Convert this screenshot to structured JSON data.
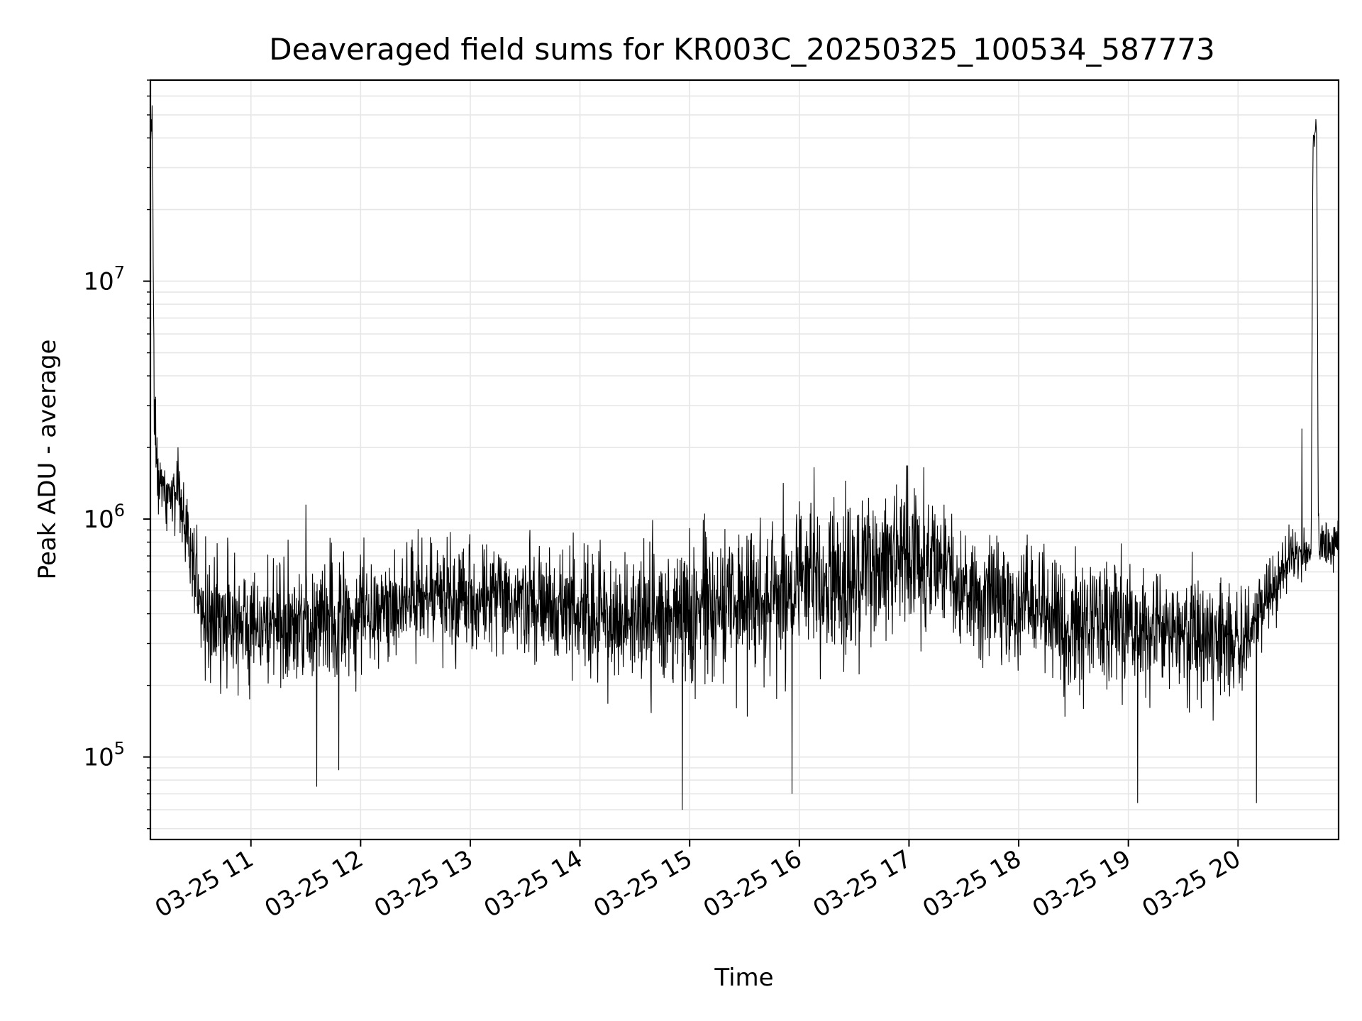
{
  "chart_data": {
    "type": "line",
    "title": "Deaveraged field sums for KR003C_20250325_100534_587773",
    "xlabel": "Time",
    "ylabel": "Peak ADU - average",
    "y_scale": "log",
    "grid": true,
    "line_color": "#000000",
    "grid_color": "#e6e6e6",
    "xlim": [
      "2025-03-25 10:05",
      "2025-03-25 20:55"
    ],
    "ylim": [
      45000,
      70000000
    ],
    "x_ticks": [
      {
        "value": "2025-03-25 11:00",
        "label": "03-25 11"
      },
      {
        "value": "2025-03-25 12:00",
        "label": "03-25 12"
      },
      {
        "value": "2025-03-25 13:00",
        "label": "03-25 13"
      },
      {
        "value": "2025-03-25 14:00",
        "label": "03-25 14"
      },
      {
        "value": "2025-03-25 15:00",
        "label": "03-25 15"
      },
      {
        "value": "2025-03-25 16:00",
        "label": "03-25 16"
      },
      {
        "value": "2025-03-25 17:00",
        "label": "03-25 17"
      },
      {
        "value": "2025-03-25 18:00",
        "label": "03-25 18"
      },
      {
        "value": "2025-03-25 19:00",
        "label": "03-25 19"
      },
      {
        "value": "2025-03-25 20:00",
        "label": "03-25 20"
      }
    ],
    "y_ticks": [
      {
        "value": 100000,
        "base": "10",
        "exp": "5"
      },
      {
        "value": 1000000,
        "base": "10",
        "exp": "6"
      },
      {
        "value": 10000000,
        "base": "10",
        "exp": "7"
      }
    ],
    "trend": [
      {
        "t": "2025-03-25 10:05",
        "center": 40000000,
        "spread": 1.2
      },
      {
        "t": "2025-03-25 10:06",
        "center": 45000000,
        "spread": 1.3
      },
      {
        "t": "2025-03-25 10:07",
        "center": 3000000,
        "spread": 1.8
      },
      {
        "t": "2025-03-25 10:10",
        "center": 1400000,
        "spread": 1.4
      },
      {
        "t": "2025-03-25 10:20",
        "center": 1200000,
        "spread": 1.4
      },
      {
        "t": "2025-03-25 10:25",
        "center": 900000,
        "spread": 1.5
      },
      {
        "t": "2025-03-25 10:35",
        "center": 380000,
        "spread": 1.9
      },
      {
        "t": "2025-03-25 11:30",
        "center": 350000,
        "spread": 1.9
      },
      {
        "t": "2025-03-25 12:30",
        "center": 480000,
        "spread": 1.7
      },
      {
        "t": "2025-03-25 13:30",
        "center": 430000,
        "spread": 1.8
      },
      {
        "t": "2025-03-25 14:30",
        "center": 380000,
        "spread": 1.9
      },
      {
        "t": "2025-03-25 15:30",
        "center": 450000,
        "spread": 2.3
      },
      {
        "t": "2025-03-25 16:30",
        "center": 580000,
        "spread": 2.2
      },
      {
        "t": "2025-03-25 17:00",
        "center": 700000,
        "spread": 2.0
      },
      {
        "t": "2025-03-25 18:00",
        "center": 420000,
        "spread": 1.9
      },
      {
        "t": "2025-03-25 19:00",
        "center": 350000,
        "spread": 1.9
      },
      {
        "t": "2025-03-25 20:05",
        "center": 320000,
        "spread": 1.8
      },
      {
        "t": "2025-03-25 20:30",
        "center": 700000,
        "spread": 1.3
      },
      {
        "t": "2025-03-25 20:40",
        "center": 750000,
        "spread": 1.25
      },
      {
        "t": "2025-03-25 20:41",
        "center": 40000000,
        "spread": 1.15
      },
      {
        "t": "2025-03-25 20:43",
        "center": 42000000,
        "spread": 1.15
      },
      {
        "t": "2025-03-25 20:44",
        "center": 800000,
        "spread": 1.3
      },
      {
        "t": "2025-03-25 20:55",
        "center": 800000,
        "spread": 1.3
      }
    ],
    "notable_points": [
      {
        "t": "2025-03-25 10:07",
        "y": 5700000
      },
      {
        "t": "2025-03-25 11:30",
        "y": 1150000
      },
      {
        "t": "2025-03-25 11:36",
        "y": 75000
      },
      {
        "t": "2025-03-25 11:48",
        "y": 88000
      },
      {
        "t": "2025-03-25 14:56",
        "y": 60000
      },
      {
        "t": "2025-03-25 15:56",
        "y": 70000
      },
      {
        "t": "2025-03-25 16:08",
        "y": 1650000
      },
      {
        "t": "2025-03-25 17:08",
        "y": 1650000
      },
      {
        "t": "2025-03-25 19:05",
        "y": 64000
      },
      {
        "t": "2025-03-25 20:10",
        "y": 64000
      },
      {
        "t": "2025-03-25 20:35",
        "y": 2400000
      },
      {
        "t": "2025-03-25 20:55",
        "y": 1300000
      }
    ]
  }
}
